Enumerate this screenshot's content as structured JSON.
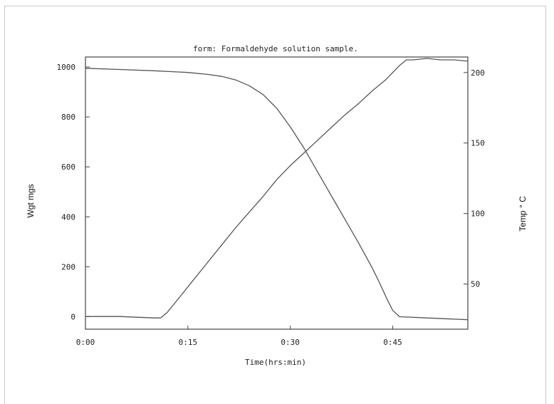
{
  "chart_data": {
    "type": "line",
    "title": "form: Formaldehyde solution sample.",
    "xlabel": "Time(hrs:min)",
    "ylabel_left": "Wgt mgs",
    "ylabel_right": "Temp ° C",
    "x_ticks": [
      "0:00",
      "0:15",
      "0:30",
      "0:45"
    ],
    "x_range_minutes": [
      0,
      56
    ],
    "y_left_ticks": [
      "1000",
      "800",
      "600",
      "400",
      "200",
      "0"
    ],
    "y_left_range": [
      -50,
      1040
    ],
    "y_right_ticks": [
      "200",
      "150",
      "100",
      "50"
    ],
    "y_right_range": [
      18,
      211
    ],
    "grid": false,
    "series": [
      {
        "axis": "left",
        "color": "#555555",
        "x": [
          0,
          5,
          10,
          15,
          18,
          20,
          22,
          24,
          26,
          28,
          30,
          32,
          34,
          36,
          38,
          40,
          42,
          43,
          44,
          45,
          46,
          50,
          56
        ],
        "y": [
          995,
          990,
          985,
          978,
          970,
          962,
          948,
          925,
          890,
          835,
          760,
          675,
          580,
          485,
          390,
          295,
          195,
          140,
          80,
          25,
          0,
          -5,
          -12
        ]
      },
      {
        "axis": "right",
        "color": "#555555",
        "x": [
          0,
          5,
          10,
          11,
          12,
          14,
          16,
          18,
          20,
          22,
          24,
          26,
          28,
          30,
          32,
          34,
          36,
          38,
          40,
          42,
          44,
          46,
          47,
          48,
          50,
          52,
          54,
          56
        ],
        "y": [
          27,
          27,
          26,
          26,
          30,
          42,
          54,
          66,
          78,
          90,
          101,
          112,
          124,
          134,
          143,
          152,
          161,
          170,
          178,
          187,
          195,
          205,
          209,
          209,
          210,
          209,
          209,
          208
        ]
      }
    ]
  }
}
